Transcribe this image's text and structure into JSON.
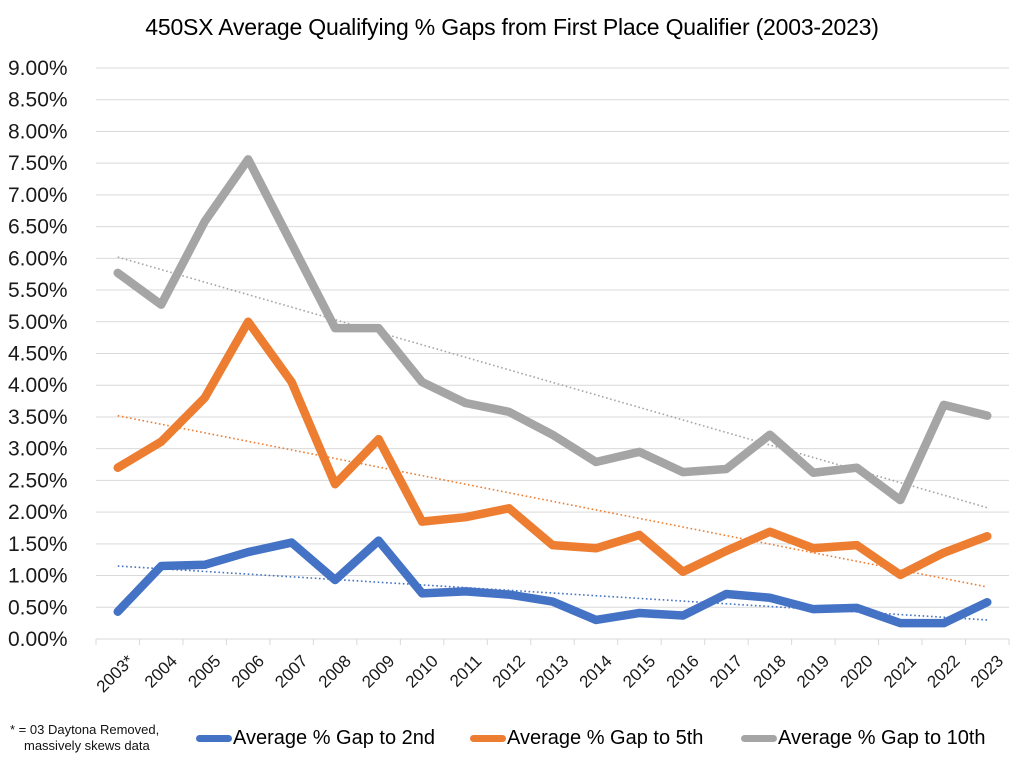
{
  "chart_data": {
    "type": "line",
    "title": "450SX Average Qualifying % Gaps from First Place Qualifier (2003-2023)",
    "xlabel": "",
    "ylabel": "",
    "ylim": [
      0,
      9
    ],
    "y_tick_step": 0.5,
    "y_tick_labels": [
      "0.00%",
      "0.50%",
      "1.00%",
      "1.50%",
      "2.00%",
      "2.50%",
      "3.00%",
      "3.50%",
      "4.00%",
      "4.50%",
      "5.00%",
      "5.50%",
      "6.00%",
      "6.50%",
      "7.00%",
      "7.50%",
      "8.00%",
      "8.50%",
      "9.00%"
    ],
    "grid": true,
    "legend_position": "bottom",
    "categories": [
      "2003*",
      "2004",
      "2005",
      "2006",
      "2007",
      "2008",
      "2009",
      "2010",
      "2011",
      "2012",
      "2013",
      "2014",
      "2015",
      "2016",
      "2017",
      "2018",
      "2019",
      "2020",
      "2021",
      "2022",
      "2023"
    ],
    "series": [
      {
        "name": "Average % Gap to 2nd",
        "color": "#4472C4",
        "values": [
          0.43,
          1.15,
          1.17,
          1.37,
          1.52,
          0.93,
          1.55,
          0.72,
          0.75,
          0.7,
          0.59,
          0.3,
          0.41,
          0.37,
          0.71,
          0.65,
          0.47,
          0.49,
          0.25,
          0.25,
          0.58
        ],
        "trendline": {
          "type": "linear",
          "start": 1.15,
          "end": 0.3
        }
      },
      {
        "name": "Average % Gap to 5th",
        "color": "#ED7D31",
        "values": [
          2.7,
          3.11,
          3.8,
          5.0,
          4.05,
          2.44,
          3.15,
          1.85,
          1.92,
          2.06,
          1.48,
          1.43,
          1.64,
          1.06,
          1.39,
          1.69,
          1.43,
          1.48,
          1.01,
          1.36,
          1.62
        ],
        "trendline": {
          "type": "linear",
          "start": 3.52,
          "end": 0.82
        }
      },
      {
        "name": "Average % Gap to 10th",
        "color": "#A5A5A5",
        "values": [
          5.77,
          5.27,
          6.58,
          7.56,
          6.23,
          4.9,
          4.9,
          4.05,
          3.72,
          3.58,
          3.22,
          2.79,
          2.95,
          2.63,
          2.68,
          3.22,
          2.62,
          2.7,
          2.19,
          3.69,
          3.52
        ],
        "trendline": {
          "type": "linear",
          "start": 6.02,
          "end": 2.07
        }
      }
    ],
    "annotations": [
      "* = 03 Daytona Removed,",
      "massively skews data"
    ]
  },
  "footnote": {
    "line1": "* = 03 Daytona Removed,",
    "line2": "massively skews data"
  }
}
